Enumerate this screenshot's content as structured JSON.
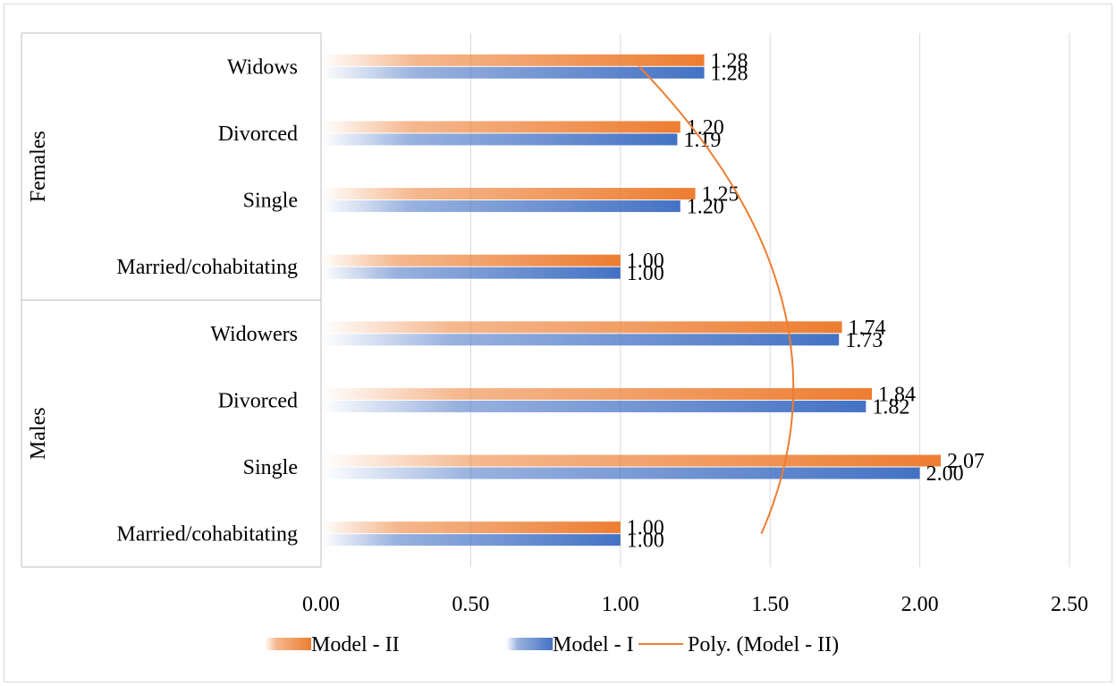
{
  "chart_data": {
    "type": "bar",
    "orientation": "horizontal",
    "groups": [
      {
        "name": "Females",
        "categories": [
          "Widows",
          "Divorced",
          "Single",
          "Married/cohabitating"
        ]
      },
      {
        "name": "Males",
        "categories": [
          "Widowers",
          "Divorced",
          "Single",
          "Married/cohabitating"
        ]
      }
    ],
    "series": [
      {
        "name": "Model - II",
        "color": "#ED7D31",
        "values": [
          1.28,
          1.2,
          1.25,
          1.0,
          1.74,
          1.84,
          2.07,
          1.0
        ],
        "labels": [
          "1.28",
          "1.20",
          "1.25",
          "1.00",
          "1.74",
          "1.84",
          "2.07",
          "1.00"
        ]
      },
      {
        "name": "Model - I",
        "color": "#4472C4",
        "values": [
          1.28,
          1.19,
          1.2,
          1.0,
          1.73,
          1.82,
          2.0,
          1.0
        ],
        "labels": [
          "1.28",
          "1.19",
          "1.20",
          "1.00",
          "1.73",
          "1.82",
          "2.00",
          "1.00"
        ]
      }
    ],
    "trendline": {
      "name": "Poly. (Model - II)",
      "color": "#ED7D31",
      "of_series": "Model - II",
      "kind": "polynomial"
    },
    "xlim": [
      0,
      2.5
    ],
    "x_ticks": [
      "0.00",
      "0.50",
      "1.00",
      "1.50",
      "2.00",
      "2.50"
    ],
    "grid": "vertical",
    "legend": "bottom"
  }
}
